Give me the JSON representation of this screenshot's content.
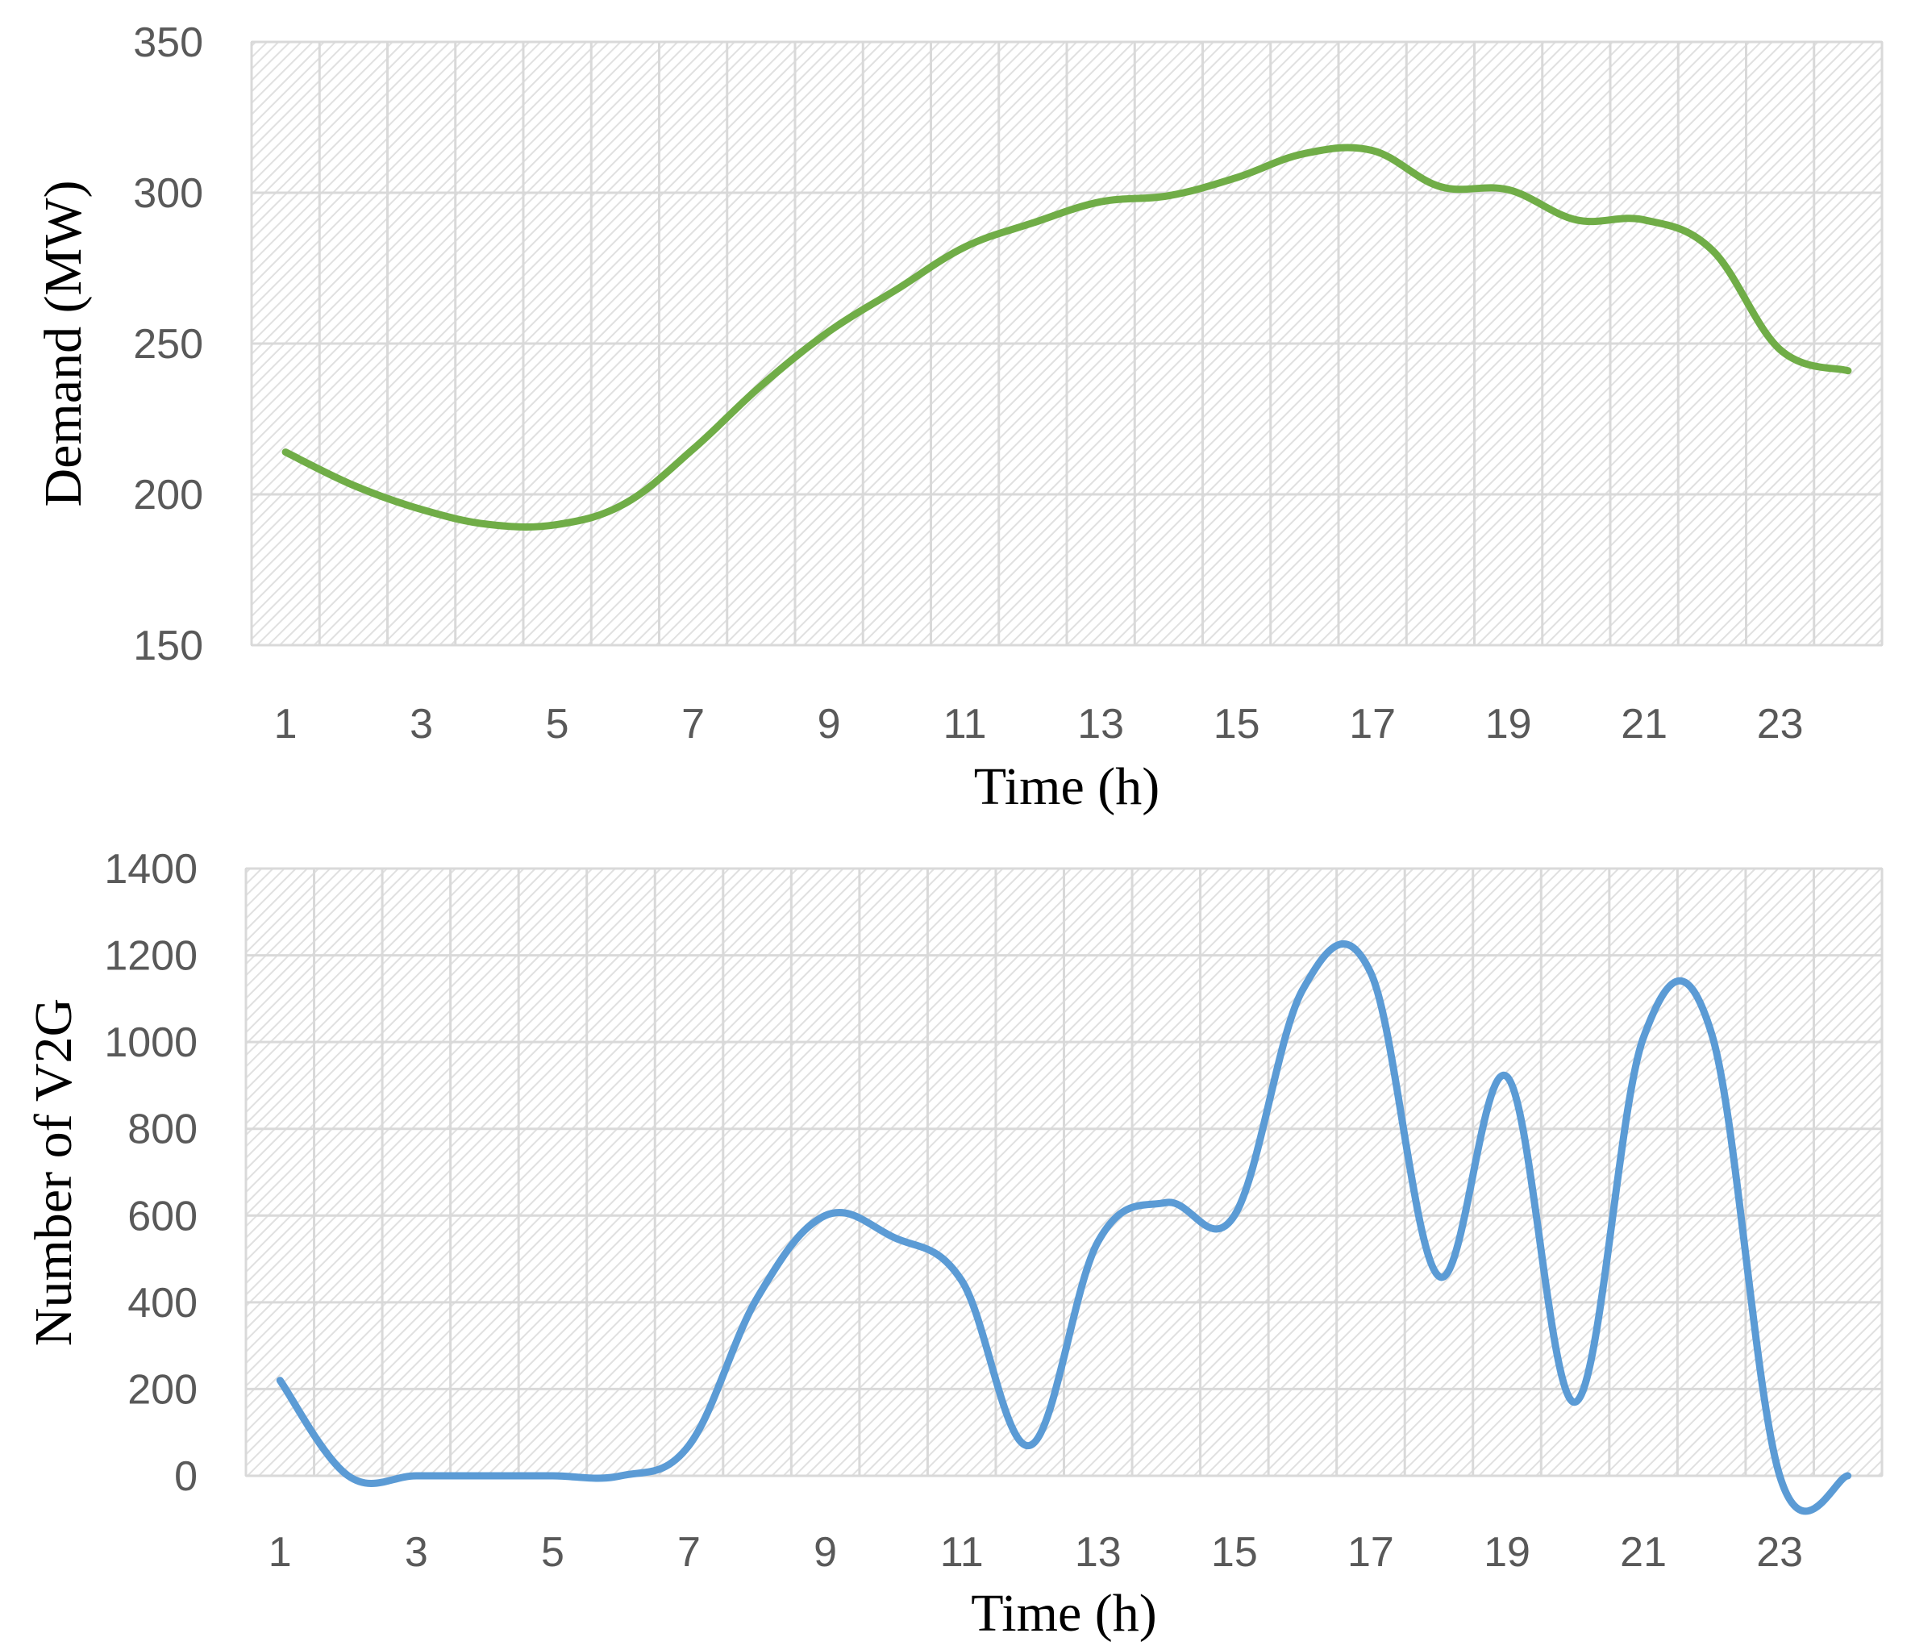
{
  "chart_data": [
    {
      "type": "line",
      "title": "",
      "xlabel": "Time (h)",
      "ylabel": "Demand (MW)",
      "ylim": [
        150,
        350
      ],
      "yticks": [
        150,
        200,
        250,
        300,
        350
      ],
      "xticks": [
        1,
        3,
        5,
        7,
        9,
        11,
        13,
        15,
        17,
        19,
        21,
        23
      ],
      "grid": true,
      "legend": "none",
      "color": "#70ad47",
      "x": [
        1,
        2,
        3,
        4,
        5,
        6,
        7,
        8,
        9,
        10,
        11,
        12,
        13,
        14,
        15,
        16,
        17,
        18,
        19,
        20,
        21,
        22,
        23,
        24
      ],
      "y": [
        214,
        203,
        195,
        190,
        190,
        197,
        215,
        236,
        254,
        268,
        282,
        290,
        297,
        299,
        305,
        313,
        314,
        302,
        301,
        291,
        291,
        281,
        248,
        241
      ]
    },
    {
      "type": "line",
      "title": "",
      "xlabel": "Time (h)",
      "ylabel": "Number of V2G",
      "ylim": [
        0,
        1400
      ],
      "yticks": [
        0,
        200,
        400,
        600,
        800,
        1000,
        1200,
        1400
      ],
      "xticks": [
        1,
        3,
        5,
        7,
        9,
        11,
        13,
        15,
        17,
        19,
        21,
        23
      ],
      "grid": true,
      "legend": "none",
      "color": "#5b9bd5",
      "x": [
        1,
        2,
        3,
        4,
        5,
        6,
        7,
        8,
        9,
        10,
        11,
        12,
        13,
        14,
        15,
        16,
        17,
        18,
        19,
        20,
        21,
        22,
        23,
        24
      ],
      "y": [
        220,
        0,
        0,
        0,
        0,
        0,
        70,
        410,
        600,
        550,
        450,
        70,
        540,
        630,
        600,
        1120,
        1160,
        460,
        920,
        170,
        1010,
        1020,
        0,
        0
      ]
    }
  ]
}
